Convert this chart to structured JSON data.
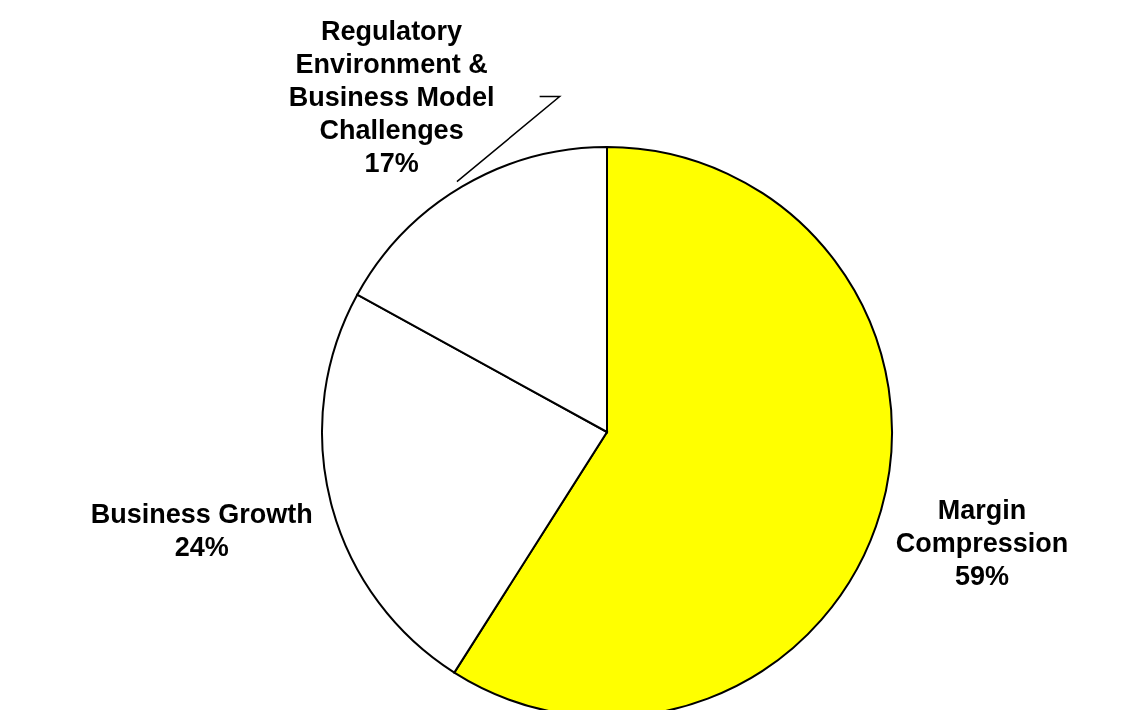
{
  "chart_data": {
    "type": "pie",
    "categories": [
      "Margin Compression",
      "Business Growth",
      "Regulatory Environment & Business Model Challenges"
    ],
    "values": [
      59,
      24,
      17
    ],
    "colors": [
      "#ffff00",
      "#ffffff",
      "#ffffff"
    ],
    "value_labels": [
      "59%",
      "24%",
      "17%"
    ],
    "legend": false
  }
}
